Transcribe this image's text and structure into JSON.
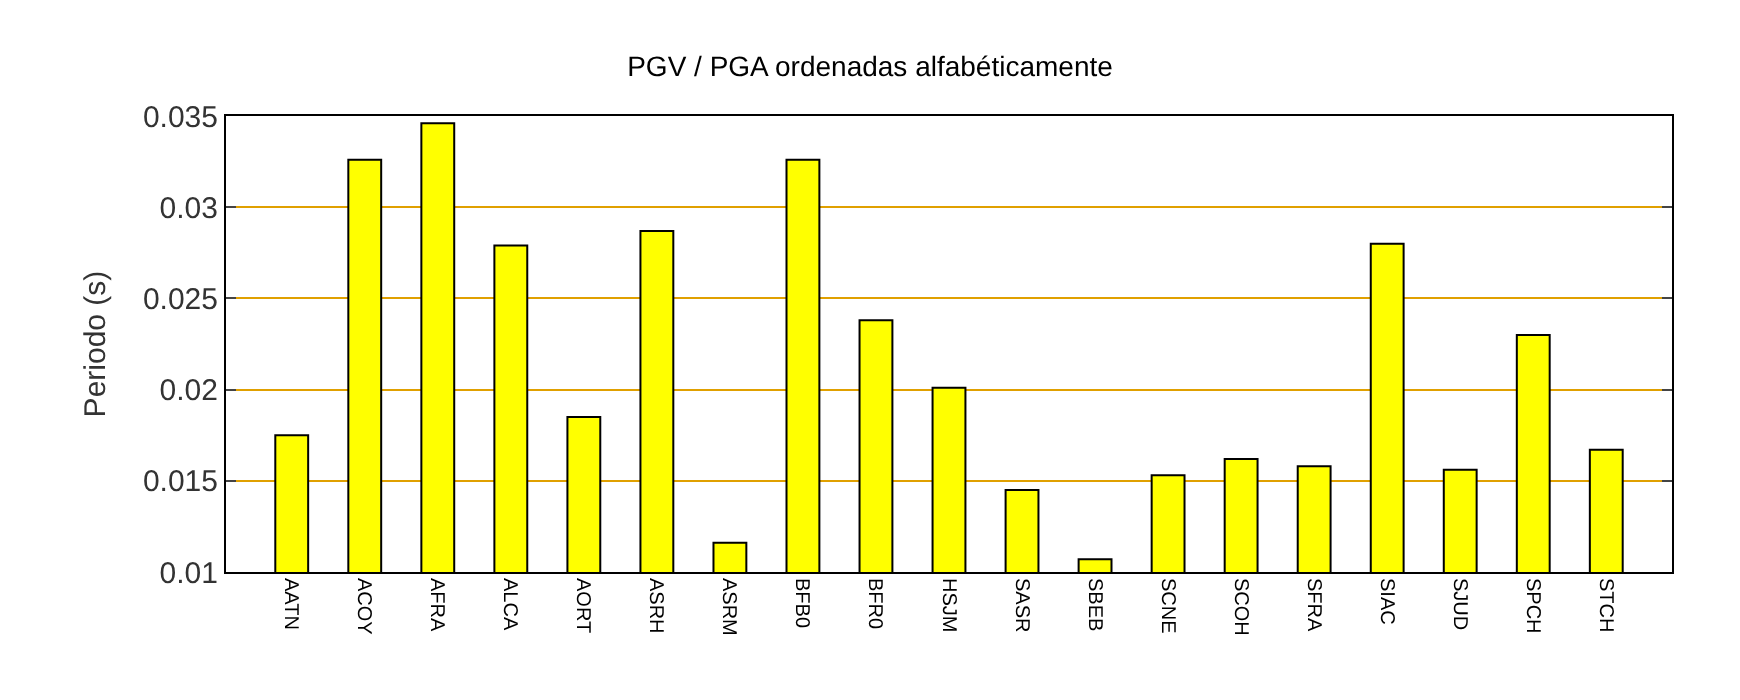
{
  "chart_data": {
    "type": "bar",
    "title": "PGV / PGA ordenadas alfabéticamente",
    "ylabel": "Periodo (s)",
    "categories": [
      "AATN",
      "ACOY",
      "AFRA",
      "ALCA",
      "AORT",
      "ASRH",
      "ASRM",
      "BFB0",
      "BFR0",
      "HSJM",
      "SASR",
      "SBEB",
      "SCNE",
      "SCOH",
      "SFRA",
      "SIAC",
      "SJUD",
      "SPCH",
      "STCH"
    ],
    "values": [
      0.0175,
      0.0326,
      0.0346,
      0.0279,
      0.0185,
      0.0287,
      0.0116,
      0.0326,
      0.0238,
      0.0201,
      0.0145,
      0.0107,
      0.0153,
      0.0162,
      0.0158,
      0.028,
      0.0156,
      0.023,
      0.0167
    ],
    "color": "#ffff00",
    "ylim": [
      0.01,
      0.035
    ],
    "yticks": [
      0.01,
      0.015,
      0.02,
      0.025,
      0.03,
      0.035
    ],
    "grid": "y",
    "legend": false
  }
}
